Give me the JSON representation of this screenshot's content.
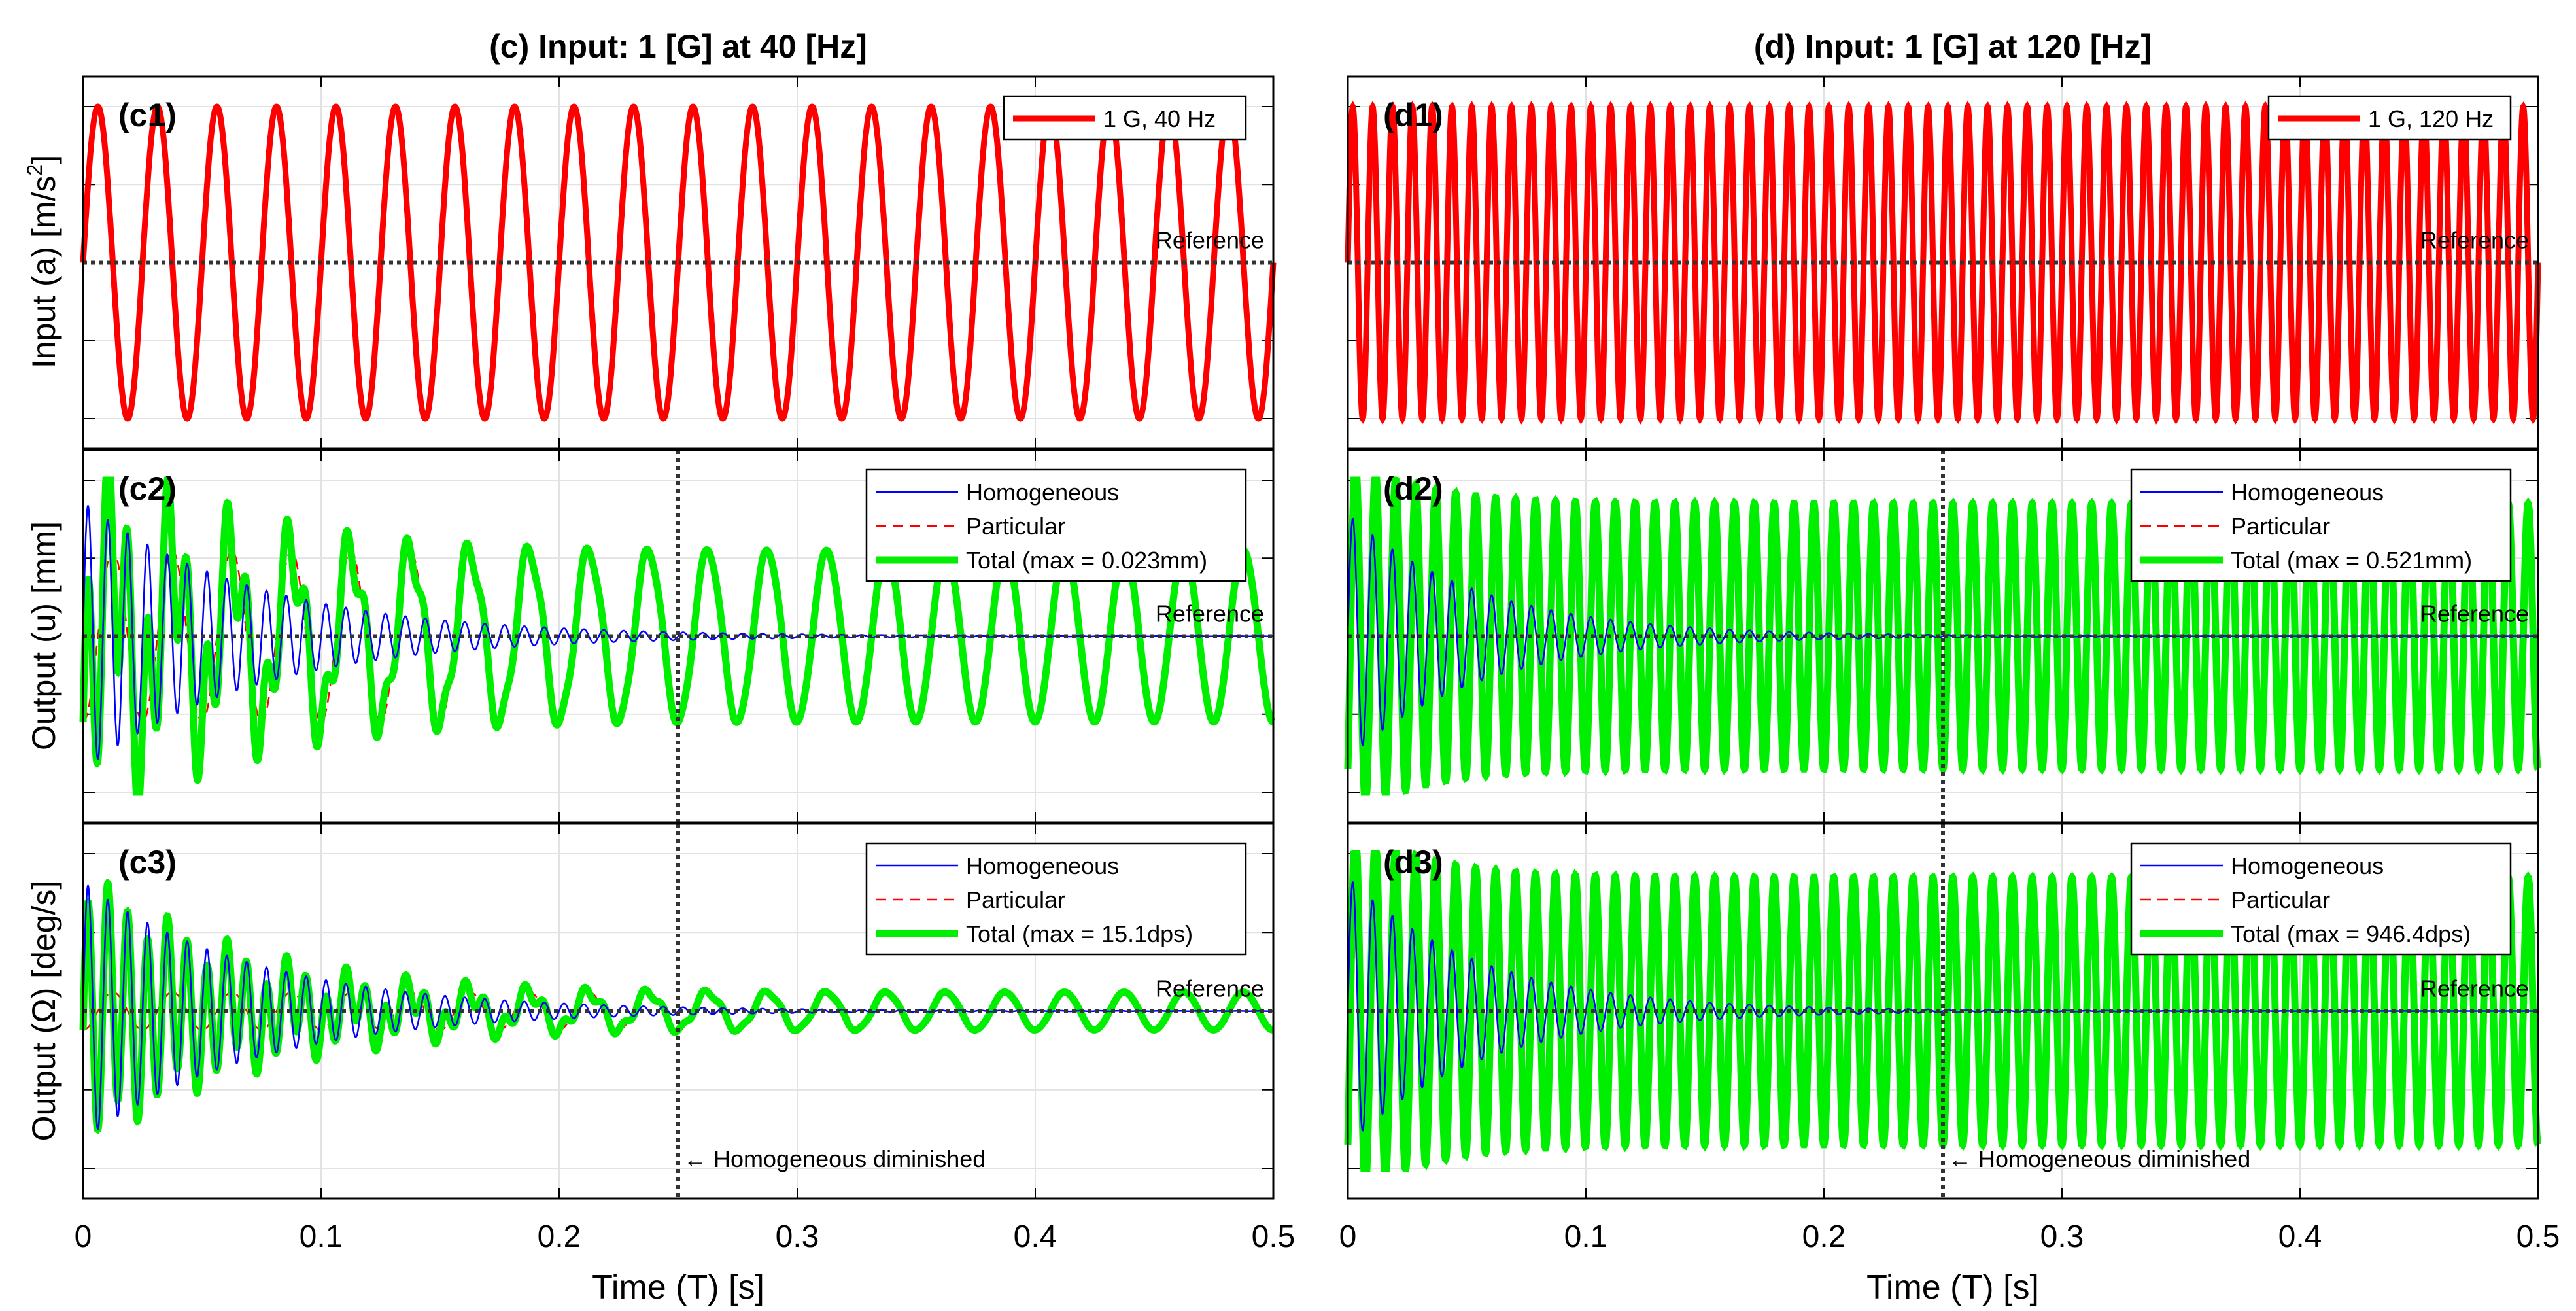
{
  "chart_data": [
    {
      "type": "line",
      "column_title": "(c) Input:  1 [G] at  40 [Hz]",
      "panels": [
        {
          "id": "c1",
          "label": "(c1)",
          "ylabel": "Input (a) [m/s²]",
          "series": [
            {
              "name": "1 G, 40 Hz",
              "color": "#ff0000",
              "kind": "input",
              "frequency_hz": 40,
              "amplitude": 1
            }
          ],
          "reference_label": "Reference",
          "xlim": [
            0,
            0.5
          ],
          "ylim": [
            -1,
            1
          ]
        },
        {
          "id": "c2",
          "label": "(c2)",
          "ylabel": "Output (u) [mm]",
          "series": [
            {
              "name": "Homogeneous",
              "color": "#0000ff",
              "kind": "homogeneous",
              "amplitude": 0.86,
              "frequency_hz": 120,
              "decay_per_s": 14
            },
            {
              "name": "Particular",
              "color": "#ff0000",
              "kind": "particular",
              "amplitude": 0.55,
              "frequency_hz": 40
            },
            {
              "name": "Total (max = 0.023mm)",
              "color": "#00ee00",
              "kind": "total"
            }
          ],
          "reference_label": "Reference",
          "vline_x": 0.25,
          "xlim": [
            0,
            0.5
          ],
          "ylim": [
            -1,
            1
          ]
        },
        {
          "id": "c3",
          "label": "(c3)",
          "ylabel": "Output (Ω) [deg/s]",
          "series": [
            {
              "name": "Homogeneous",
              "color": "#0000ff",
              "kind": "homogeneous",
              "amplitude": 0.82,
              "frequency_hz": 120,
              "decay_per_s": 14
            },
            {
              "name": "Particular",
              "color": "#ff0000",
              "kind": "particular",
              "amplitude": 0.12,
              "frequency_hz": 40
            },
            {
              "name": "Total (max = 15.1dps)",
              "color": "#00ee00",
              "kind": "total"
            }
          ],
          "reference_label": "Reference",
          "vline_x": 0.25,
          "annotation": "← Homogeneous diminished",
          "xlim": [
            0,
            0.5
          ],
          "ylim": [
            -1,
            1
          ]
        }
      ],
      "xlabel": "Time (T) [s]",
      "xticks": [
        "0",
        "0.1",
        "0.2",
        "0.3",
        "0.4",
        "0.5"
      ]
    },
    {
      "type": "line",
      "column_title": "(d) Input:  1 [G] at 120 [Hz]",
      "panels": [
        {
          "id": "d1",
          "label": "(d1)",
          "ylabel": "",
          "series": [
            {
              "name": "1 G, 120 Hz",
              "color": "#ff0000",
              "kind": "input",
              "frequency_hz": 120,
              "amplitude": 1
            }
          ],
          "reference_label": "Reference",
          "xlim": [
            0,
            0.5
          ],
          "ylim": [
            -1,
            1
          ]
        },
        {
          "id": "d2",
          "label": "(d2)",
          "ylabel": "",
          "series": [
            {
              "name": "Homogeneous",
              "color": "#0000ff",
              "kind": "homogeneous",
              "amplitude": 0.78,
              "frequency_hz": 120,
              "decay_per_s": 18
            },
            {
              "name": "Particular",
              "color": "#ff0000",
              "kind": "particular",
              "amplitude": 0.85,
              "frequency_hz": 120
            },
            {
              "name": "Total (max = 0.521mm)",
              "color": "#00ee00",
              "kind": "total"
            }
          ],
          "reference_label": "Reference",
          "vline_x": 0.25,
          "xlim": [
            0,
            0.5
          ],
          "ylim": [
            -1,
            1
          ]
        },
        {
          "id": "d3",
          "label": "(d3)",
          "ylabel": "",
          "series": [
            {
              "name": "Homogeneous",
              "color": "#0000ff",
              "kind": "homogeneous",
              "amplitude": 0.85,
              "frequency_hz": 120,
              "decay_per_s": 18
            },
            {
              "name": "Particular",
              "color": "#ff0000",
              "kind": "particular",
              "amplitude": 0.85,
              "frequency_hz": 120
            },
            {
              "name": "Total (max = 946.4dps)",
              "color": "#00ee00",
              "kind": "total"
            }
          ],
          "reference_label": "Reference",
          "vline_x": 0.25,
          "annotation": "← Homogeneous diminished",
          "xlim": [
            0,
            0.5
          ],
          "ylim": [
            -1,
            1
          ]
        }
      ],
      "xlabel": "Time (T) [s]",
      "xticks": [
        "0",
        "0.1",
        "0.2",
        "0.3",
        "0.4",
        "0.5"
      ]
    }
  ]
}
